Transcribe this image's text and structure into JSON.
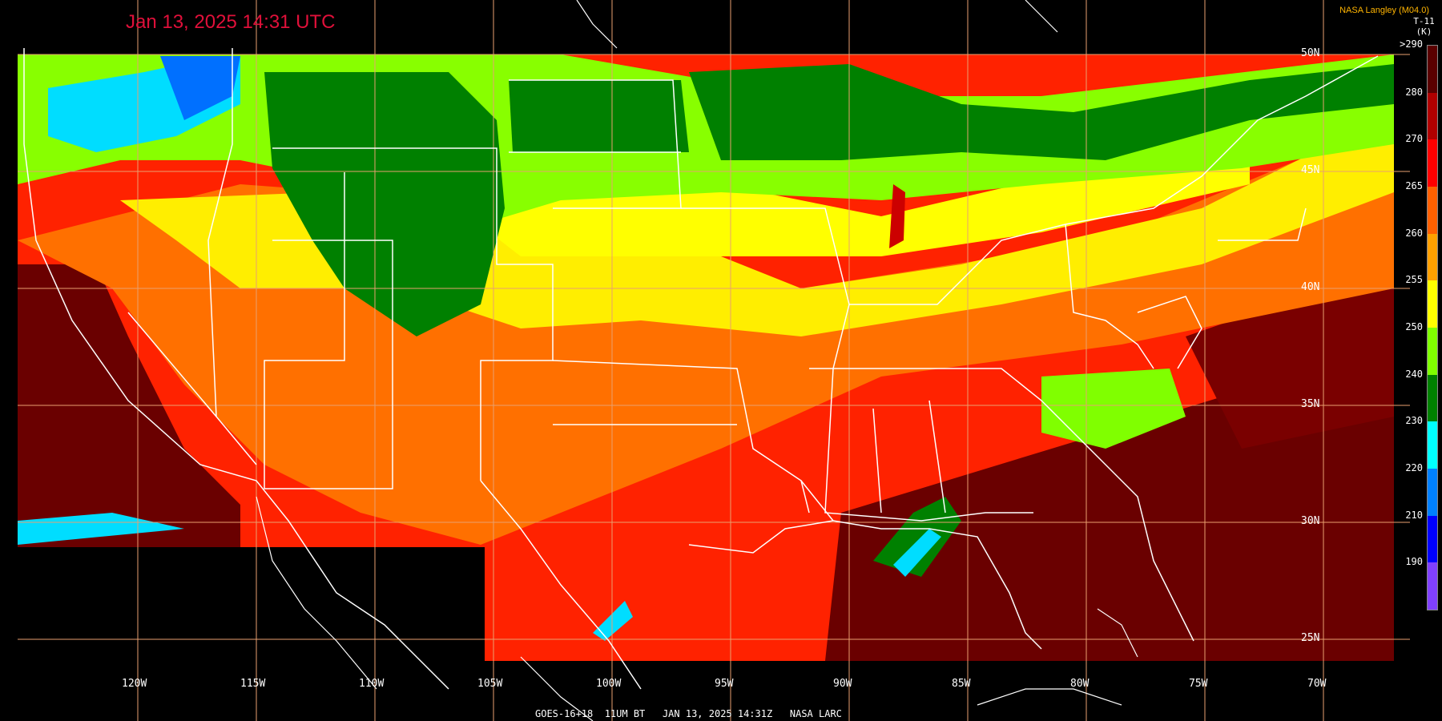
{
  "header": {
    "timestamp": "Jan 13, 2025 14:31 UTC",
    "credit": "NASA Langley (M04.0)"
  },
  "colorbar": {
    "product": "T-11",
    "unit": "(K)",
    "labels": [
      ">290",
      "280",
      "270",
      "265",
      "260",
      "255",
      "250",
      "240",
      "230",
      "220",
      "210",
      "190"
    ],
    "colors": [
      "#5a0000",
      "#b00000",
      "#ff0000",
      "#ff6000",
      "#ffa000",
      "#ffff00",
      "#80ff00",
      "#008000",
      "#00ffff",
      "#0080ff",
      "#0000ff",
      "#8040ff"
    ]
  },
  "grid": {
    "longitudes": [
      "120W",
      "115W",
      "110W",
      "105W",
      "100W",
      "95W",
      "90W",
      "85W",
      "80W",
      "75W",
      "70W"
    ],
    "latitudes": [
      "50N",
      "45N",
      "40N",
      "35N",
      "30N",
      "25N"
    ]
  },
  "footer": {
    "caption": "GOES-16+18  11UM BT   JAN 13, 2025 14:31Z   NASA LARC"
  },
  "legend_colors": {
    "graticule": "#e8a070",
    "boundaries": "#ffffff"
  }
}
